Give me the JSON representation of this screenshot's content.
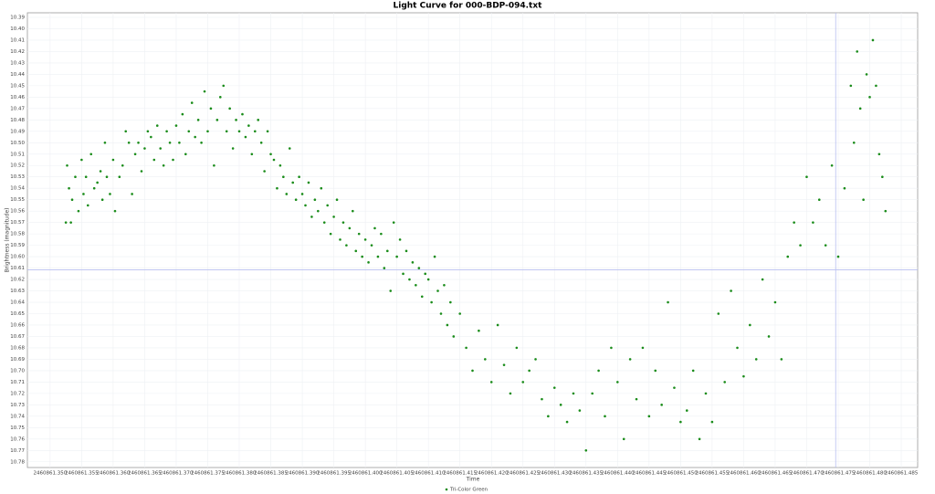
{
  "chart_data": {
    "type": "scatter",
    "title": "Light Curve for 000-BDP-094.txt",
    "x_label": "Time",
    "y_label": "Brightness (magnitude)",
    "xlim": [
      2460861.3464,
      2460861.4876
    ],
    "ylim": [
      10.785,
      10.386
    ],
    "xticks": [
      {
        "value": 2460861.35,
        "label": "2460861.350"
      },
      2460861.355,
      {
        "value": 2460861.36,
        "label": "2460861.360"
      },
      2460861.365,
      {
        "value": 2460861.37,
        "label": "2460861.370"
      },
      2460861.375,
      {
        "value": 2460861.38,
        "label": "2460861.380"
      },
      2460861.385,
      {
        "value": 2460861.39,
        "label": "2460861.390"
      },
      2460861.395,
      {
        "value": 2460861.4,
        "label": "2460861.400"
      },
      2460861.405,
      {
        "value": 2460861.41,
        "label": "2460861.410"
      },
      2460861.415,
      {
        "value": 2460861.42,
        "label": "2460861.420"
      },
      2460861.425,
      {
        "value": 2460861.43,
        "label": "2460861.430"
      },
      2460861.435,
      {
        "value": 2460861.44,
        "label": "2460861.440"
      },
      2460861.445,
      {
        "value": 2460861.45,
        "label": "2460861.450"
      },
      2460861.455,
      {
        "value": 2460861.46,
        "label": "2460861.460"
      },
      2460861.465,
      {
        "value": 2460861.47,
        "label": "2460861.470"
      },
      2460861.475,
      {
        "value": 2460861.48,
        "label": "2460861.480"
      },
      2460861.485
    ],
    "yticks": [
      10.39,
      {
        "value": 10.4,
        "label": "10.40"
      },
      10.41,
      10.42,
      10.43,
      10.44,
      10.45,
      10.46,
      10.47,
      10.48,
      10.49,
      {
        "value": 10.5,
        "label": "10.50"
      },
      10.51,
      10.52,
      10.53,
      10.54,
      10.55,
      10.56,
      10.57,
      10.58,
      10.59,
      {
        "value": 10.6,
        "label": "10.60"
      },
      10.61,
      10.62,
      10.63,
      10.64,
      10.65,
      10.66,
      10.67,
      10.68,
      10.69,
      {
        "value": 10.7,
        "label": "10.70"
      },
      10.71,
      10.72,
      10.73,
      10.74,
      10.75,
      10.76,
      10.77,
      10.78
    ],
    "grid": true,
    "crosshair": {
      "x": 2460861.4746,
      "y": 10.6116,
      "color": "#b8bff0"
    },
    "legend": "bottom",
    "series": [
      {
        "name": "Tri-Color Green",
        "color": "#1a8c1a",
        "x": [
          2460861.3525,
          2460861.3527,
          2460861.353,
          2460861.3533,
          2460861.3535,
          2460861.354,
          2460861.3545,
          2460861.355,
          2460861.3553,
          2460861.3557,
          2460861.356,
          2460861.3565,
          2460861.357,
          2460861.3575,
          2460861.358,
          2460861.3583,
          2460861.3587,
          2460861.359,
          2460861.3595,
          2460861.36,
          2460861.3603,
          2460861.361,
          2460861.3615,
          2460861.362,
          2460861.3625,
          2460861.363,
          2460861.3635,
          2460861.364,
          2460861.3645,
          2460861.365,
          2460861.3655,
          2460861.366,
          2460861.3665,
          2460861.367,
          2460861.3675,
          2460861.368,
          2460861.3685,
          2460861.369,
          2460861.3695,
          2460861.37,
          2460861.3705,
          2460861.371,
          2460861.3715,
          2460861.372,
          2460861.3725,
          2460861.373,
          2460861.3735,
          2460861.374,
          2460861.3745,
          2460861.375,
          2460861.3755,
          2460861.376,
          2460861.3765,
          2460861.377,
          2460861.3775,
          2460861.378,
          2460861.3785,
          2460861.379,
          2460861.3795,
          2460861.38,
          2460861.3805,
          2460861.381,
          2460861.3815,
          2460861.382,
          2460861.3825,
          2460861.383,
          2460861.3835,
          2460861.384,
          2460861.3845,
          2460861.385,
          2460861.3855,
          2460861.386,
          2460861.3865,
          2460861.387,
          2460861.3875,
          2460861.388,
          2460861.3885,
          2460861.389,
          2460861.3895,
          2460861.39,
          2460861.3905,
          2460861.391,
          2460861.3915,
          2460861.392,
          2460861.3925,
          2460861.393,
          2460861.3935,
          2460861.394,
          2460861.3945,
          2460861.395,
          2460861.3955,
          2460861.396,
          2460861.3965,
          2460861.397,
          2460861.3975,
          2460861.398,
          2460861.3985,
          2460861.399,
          2460861.3995,
          2460861.4,
          2460861.4005,
          2460861.401,
          2460861.4015,
          2460861.402,
          2460861.4025,
          2460861.403,
          2460861.4035,
          2460861.404,
          2460861.4045,
          2460861.405,
          2460861.4055,
          2460861.406,
          2460861.4065,
          2460861.407,
          2460861.4075,
          2460861.408,
          2460861.4085,
          2460861.409,
          2460861.4095,
          2460861.41,
          2460861.4105,
          2460861.411,
          2460861.4115,
          2460861.412,
          2460861.4125,
          2460861.413,
          2460861.4135,
          2460861.414,
          2460861.415,
          2460861.416,
          2460861.417,
          2460861.418,
          2460861.419,
          2460861.42,
          2460861.421,
          2460861.422,
          2460861.423,
          2460861.424,
          2460861.425,
          2460861.426,
          2460861.427,
          2460861.428,
          2460861.429,
          2460861.43,
          2460861.431,
          2460861.432,
          2460861.433,
          2460861.434,
          2460861.435,
          2460861.436,
          2460861.437,
          2460861.438,
          2460861.439,
          2460861.44,
          2460861.441,
          2460861.442,
          2460861.443,
          2460861.444,
          2460861.445,
          2460861.446,
          2460861.447,
          2460861.448,
          2460861.449,
          2460861.45,
          2460861.451,
          2460861.452,
          2460861.453,
          2460861.454,
          2460861.455,
          2460861.456,
          2460861.457,
          2460861.458,
          2460861.459,
          2460861.46,
          2460861.461,
          2460861.462,
          2460861.463,
          2460861.464,
          2460861.465,
          2460861.466,
          2460861.467,
          2460861.468,
          2460861.469,
          2460861.47,
          2460861.471,
          2460861.472,
          2460861.473,
          2460861.474,
          2460861.475,
          2460861.476,
          2460861.477,
          2460861.4775,
          2460861.478,
          2460861.4785,
          2460861.479,
          2460861.4795,
          2460861.48,
          2460861.4805,
          2460861.481,
          2460861.4815,
          2460861.482,
          2460861.4825
        ],
        "values": [
          10.57,
          10.52,
          10.54,
          10.57,
          10.55,
          10.53,
          10.56,
          10.515,
          10.545,
          10.53,
          10.555,
          10.51,
          10.54,
          10.535,
          10.525,
          10.55,
          10.5,
          10.53,
          10.545,
          10.515,
          10.56,
          10.53,
          10.52,
          10.49,
          10.5,
          10.545,
          10.51,
          10.5,
          10.525,
          10.505,
          10.49,
          10.495,
          10.515,
          10.485,
          10.505,
          10.52,
          10.49,
          10.5,
          10.515,
          10.485,
          10.5,
          10.475,
          10.51,
          10.49,
          10.465,
          10.495,
          10.48,
          10.5,
          10.455,
          10.49,
          10.47,
          10.52,
          10.48,
          10.46,
          10.45,
          10.49,
          10.47,
          10.505,
          10.48,
          10.49,
          10.475,
          10.495,
          10.485,
          10.51,
          10.49,
          10.48,
          10.5,
          10.525,
          10.49,
          10.51,
          10.515,
          10.54,
          10.52,
          10.53,
          10.545,
          10.505,
          10.535,
          10.55,
          10.53,
          10.545,
          10.555,
          10.535,
          10.565,
          10.55,
          10.56,
          10.54,
          10.57,
          10.555,
          10.58,
          10.565,
          10.55,
          10.585,
          10.57,
          10.59,
          10.575,
          10.56,
          10.595,
          10.58,
          10.6,
          10.585,
          10.605,
          10.59,
          10.575,
          10.6,
          10.58,
          10.61,
          10.595,
          10.63,
          10.57,
          10.6,
          10.585,
          10.615,
          10.595,
          10.62,
          10.605,
          10.625,
          10.61,
          10.635,
          10.615,
          10.62,
          10.64,
          10.6,
          10.63,
          10.65,
          10.625,
          10.66,
          10.64,
          10.67,
          10.65,
          10.68,
          10.7,
          10.665,
          10.69,
          10.71,
          10.66,
          10.695,
          10.72,
          10.68,
          10.71,
          10.7,
          10.69,
          10.725,
          10.74,
          10.715,
          10.73,
          10.745,
          10.72,
          10.735,
          10.77,
          10.72,
          10.7,
          10.74,
          10.68,
          10.71,
          10.76,
          10.69,
          10.725,
          10.68,
          10.74,
          10.7,
          10.73,
          10.64,
          10.715,
          10.745,
          10.735,
          10.7,
          10.76,
          10.72,
          10.745,
          10.65,
          10.71,
          10.63,
          10.68,
          10.705,
          10.66,
          10.69,
          10.62,
          10.67,
          10.64,
          10.69,
          10.6,
          10.57,
          10.59,
          10.53,
          10.57,
          10.55,
          10.59,
          10.52,
          10.6,
          10.54,
          10.45,
          10.5,
          10.42,
          10.47,
          10.55,
          10.44,
          10.46,
          10.41,
          10.45,
          10.51,
          10.53,
          10.56
        ]
      }
    ]
  }
}
